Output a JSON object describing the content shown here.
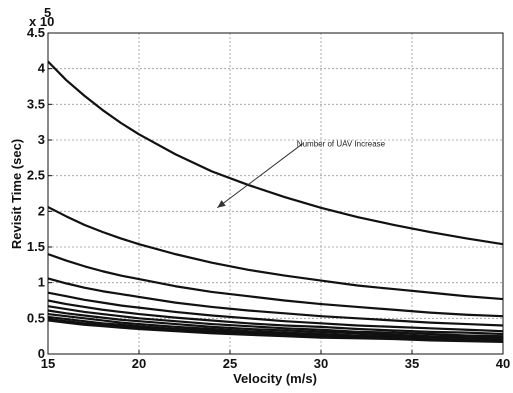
{
  "chart_data": {
    "type": "line",
    "title": "",
    "xlabel": "Velocity (m/s)",
    "ylabel": "Revisit Time (sec)",
    "y_multiplier_label": "x 10",
    "y_multiplier_exponent": "5",
    "xlim": [
      15,
      40
    ],
    "ylim": [
      0,
      4.5
    ],
    "x_ticks": [
      "15",
      "20",
      "25",
      "30",
      "35",
      "40"
    ],
    "y_ticks": [
      "0",
      "0.5",
      "1",
      "1.5",
      "2",
      "2.5",
      "3",
      "3.5",
      "4",
      "4.5"
    ],
    "grid": true,
    "line_color": "#111111",
    "x": [
      15,
      16,
      17,
      18,
      19,
      20,
      22,
      24,
      26,
      28,
      30,
      32,
      34,
      36,
      38,
      40
    ],
    "series": [
      {
        "values": [
          4.1,
          3.84,
          3.62,
          3.42,
          3.24,
          3.08,
          2.8,
          2.56,
          2.37,
          2.2,
          2.05,
          1.92,
          1.81,
          1.71,
          1.62,
          1.54
        ]
      },
      {
        "values": [
          2.06,
          1.93,
          1.81,
          1.71,
          1.62,
          1.54,
          1.4,
          1.28,
          1.18,
          1.1,
          1.03,
          0.96,
          0.91,
          0.86,
          0.81,
          0.77
        ]
      },
      {
        "values": [
          1.4,
          1.31,
          1.23,
          1.16,
          1.1,
          1.05,
          0.95,
          0.87,
          0.81,
          0.75,
          0.7,
          0.66,
          0.62,
          0.58,
          0.55,
          0.53
        ]
      },
      {
        "values": [
          1.06,
          0.99,
          0.93,
          0.88,
          0.84,
          0.8,
          0.72,
          0.66,
          0.61,
          0.57,
          0.53,
          0.5,
          0.47,
          0.44,
          0.42,
          0.4
        ]
      },
      {
        "values": [
          0.86,
          0.81,
          0.76,
          0.72,
          0.68,
          0.65,
          0.59,
          0.54,
          0.5,
          0.46,
          0.43,
          0.4,
          0.38,
          0.36,
          0.34,
          0.32
        ]
      },
      {
        "values": [
          0.75,
          0.7,
          0.66,
          0.62,
          0.59,
          0.56,
          0.51,
          0.47,
          0.43,
          0.4,
          0.38,
          0.35,
          0.33,
          0.31,
          0.3,
          0.28
        ]
      },
      {
        "values": [
          0.67,
          0.63,
          0.59,
          0.56,
          0.53,
          0.5,
          0.46,
          0.42,
          0.39,
          0.36,
          0.34,
          0.31,
          0.3,
          0.28,
          0.26,
          0.25
        ]
      },
      {
        "values": [
          0.61,
          0.57,
          0.54,
          0.51,
          0.48,
          0.46,
          0.42,
          0.38,
          0.35,
          0.33,
          0.31,
          0.29,
          0.27,
          0.25,
          0.24,
          0.23
        ]
      },
      {
        "values": [
          0.56,
          0.53,
          0.5,
          0.47,
          0.44,
          0.42,
          0.38,
          0.35,
          0.32,
          0.3,
          0.28,
          0.26,
          0.25,
          0.23,
          0.22,
          0.21
        ]
      },
      {
        "values": [
          0.52,
          0.49,
          0.46,
          0.43,
          0.41,
          0.39,
          0.35,
          0.33,
          0.3,
          0.28,
          0.26,
          0.24,
          0.23,
          0.22,
          0.21,
          0.2
        ]
      },
      {
        "values": [
          0.49,
          0.46,
          0.43,
          0.41,
          0.39,
          0.37,
          0.33,
          0.31,
          0.28,
          0.26,
          0.25,
          0.23,
          0.22,
          0.2,
          0.19,
          0.18
        ]
      },
      {
        "values": [
          0.47,
          0.44,
          0.41,
          0.39,
          0.37,
          0.35,
          0.32,
          0.29,
          0.27,
          0.25,
          0.23,
          0.22,
          0.21,
          0.19,
          0.18,
          0.17
        ]
      }
    ],
    "annotation": {
      "text": "Number of UAV Increase",
      "arrow_from": [
        29,
        2.95
      ],
      "arrow_to": [
        24.3,
        2.05
      ]
    }
  }
}
